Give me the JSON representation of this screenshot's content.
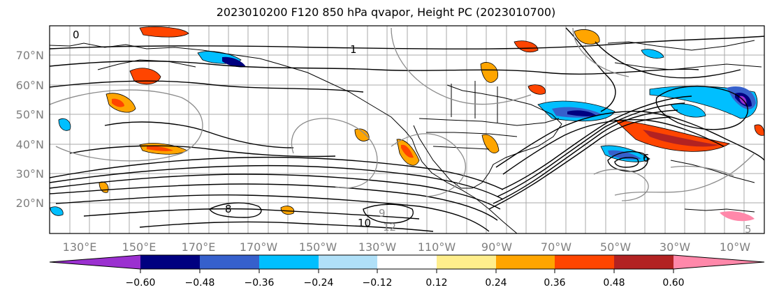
{
  "title": "2023010200 F120 850 hPa qvapor, Height PC (2023010700)",
  "map": {
    "lat_labels": [
      "70°N",
      "60°N",
      "50°N",
      "40°N",
      "30°N",
      "20°N"
    ],
    "lon_labels": [
      "130°E",
      "150°E",
      "170°E",
      "170°W",
      "150°W",
      "130°W",
      "110°W",
      "90°W",
      "70°W",
      "50°W",
      "30°W",
      "10°W"
    ],
    "contour_labels": [
      "0",
      "1",
      "8",
      "10",
      "12",
      "9",
      "6",
      "5"
    ]
  },
  "colorbar": {
    "colors": {
      "min_extend": "#9b30d0",
      "b1": "#000080",
      "b2": "#3660cc",
      "b3": "#00bfff",
      "b4": "#b0e0f8",
      "b5": "#ffffff",
      "b6": "#ffee8c",
      "b7": "#ffa500",
      "b8": "#ff4500",
      "b9": "#b22222",
      "max_extend": "#ff88aa"
    },
    "tick_labels": [
      "−0.60",
      "−0.48",
      "−0.36",
      "−0.24",
      "−0.12",
      "0.12",
      "0.24",
      "0.36",
      "0.48",
      "0.60"
    ]
  }
}
